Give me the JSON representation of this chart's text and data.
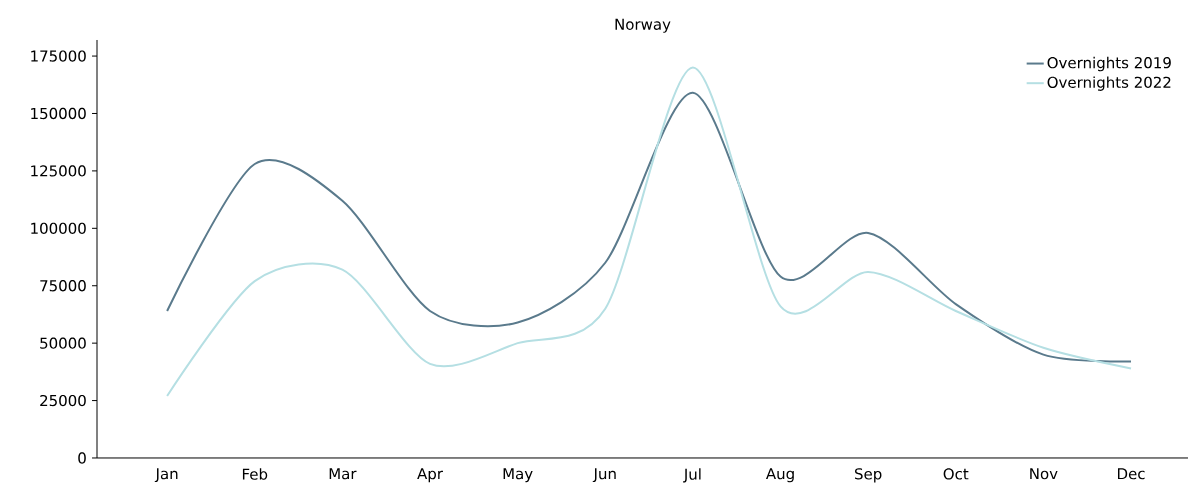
{
  "chart_data": {
    "type": "line",
    "title": "Norway",
    "categories": [
      "Jan",
      "Feb",
      "Mar",
      "Apr",
      "May",
      "Jun",
      "Jul",
      "Aug",
      "Sep",
      "Oct",
      "Nov",
      "Dec"
    ],
    "series": [
      {
        "name": "Overnights 2019",
        "color": "#5a7a8c",
        "values": [
          64000,
          128000,
          112000,
          64000,
          59000,
          85000,
          159000,
          79000,
          98000,
          67000,
          45000,
          42000
        ]
      },
      {
        "name": "Overnights 2022",
        "color": "#b5dfe3",
        "values": [
          27000,
          77000,
          82000,
          41000,
          50000,
          65000,
          170000,
          66000,
          81000,
          64000,
          48000,
          39000
        ]
      }
    ],
    "ylim": [
      0,
      182000
    ],
    "yticks": [
      0,
      25000,
      50000,
      75000,
      100000,
      125000,
      150000,
      175000
    ],
    "grid": false,
    "legend": "top right",
    "marker": "none",
    "line_style": "solid"
  }
}
